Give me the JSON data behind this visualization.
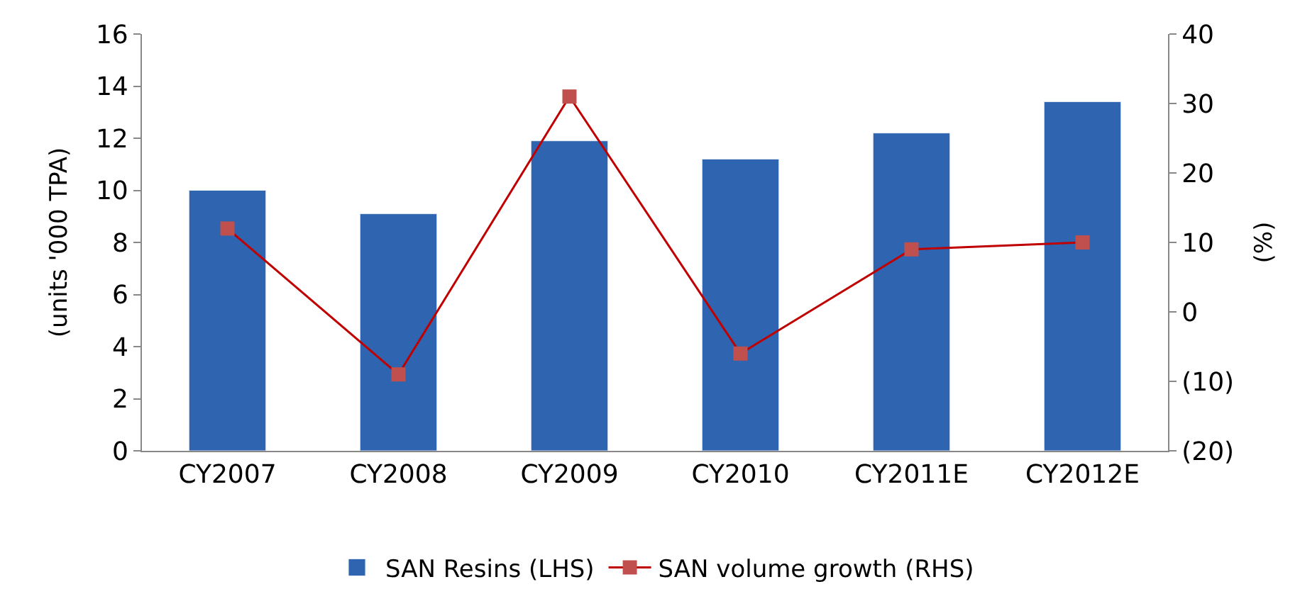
{
  "chart_data": {
    "type": "bar",
    "ylabel": "(units '000 TPA)",
    "y2label": "(%)",
    "categories": [
      "CY2007",
      "CY2008",
      "CY2009",
      "CY2010",
      "CY2011E",
      "CY2012E"
    ],
    "series": [
      {
        "name": "SAN Resins (LHS)",
        "color": "#2e64b0",
        "values": [
          10.0,
          9.1,
          11.9,
          11.2,
          12.2,
          13.4
        ]
      },
      {
        "name": "SAN volume growth (RHS)",
        "type": "line",
        "axis": "y2",
        "color": "#c00000",
        "marker": "square",
        "values": [
          12,
          -9,
          31,
          -6,
          9,
          10
        ]
      }
    ],
    "ylim": [
      0,
      16
    ],
    "yticks": [
      0,
      2,
      4,
      6,
      8,
      10,
      12,
      14,
      16
    ],
    "y2lim": [
      -20,
      40
    ],
    "y2ticks": [
      {
        "value": -20,
        "label": "(20)"
      },
      {
        "value": -10,
        "label": "(10)"
      },
      0,
      10,
      20,
      30,
      40
    ],
    "legend": "bottom"
  }
}
